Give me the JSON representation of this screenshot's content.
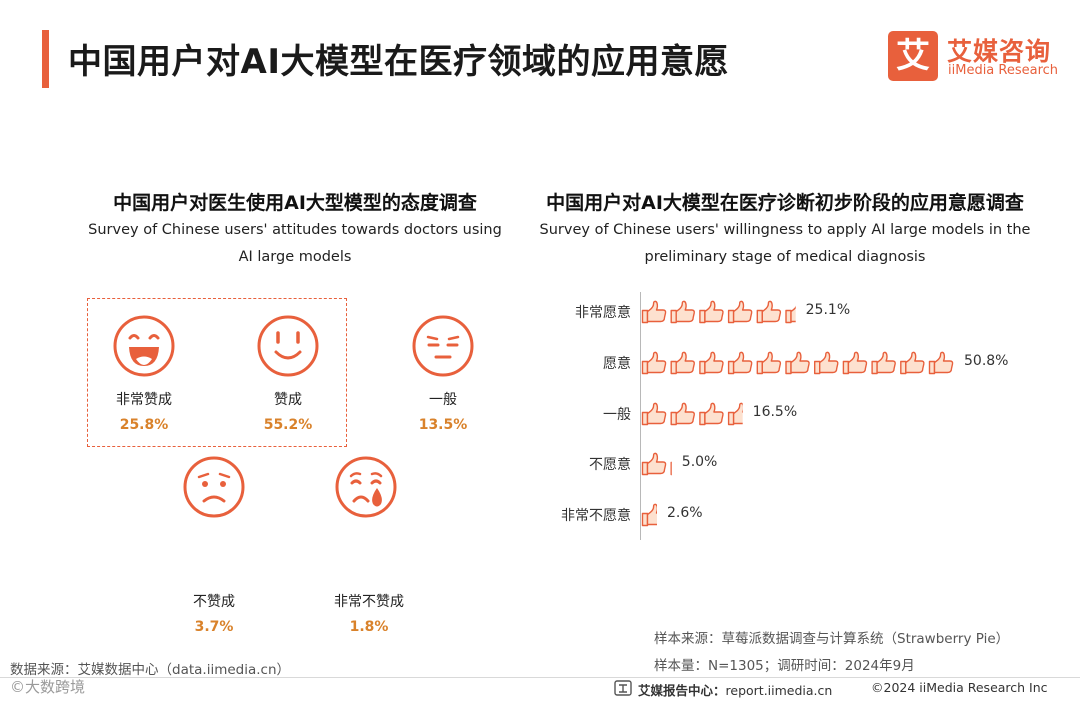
{
  "header": {
    "title": "中国用户对AI大模型在医疗领域的应用意愿",
    "logo_mark": "艾",
    "logo_cn": "艾媒咨询",
    "logo_en": "iiMedia Research"
  },
  "colors": {
    "accent": "#e8603c",
    "value": "#d9822b",
    "axis": "#b8b8b8"
  },
  "left_section": {
    "title_cn": "中国用户对医生使用AI大型模型的态度调查",
    "subtitle_line1": "Survey of Chinese users' attitudes towards doctors using",
    "subtitle_line2": "AI large models"
  },
  "right_section": {
    "title_cn": "中国用户对AI大模型在医疗诊断初步阶段的应用意愿调查",
    "subtitle_line1": "Survey of Chinese users' willingness to apply AI large models in the",
    "subtitle_line2": "preliminary stage of medical diagnosis"
  },
  "chart_data": [
    {
      "type": "pie",
      "categories": [
        "非常赞成",
        "赞成",
        "一般",
        "不赞成",
        "非常不赞成"
      ],
      "values": [
        25.8,
        55.2,
        13.5,
        3.7,
        1.8
      ],
      "value_labels": [
        "25.8%",
        "55.2%",
        "13.5%",
        "3.7%",
        "1.8%"
      ],
      "icons": [
        "big-laugh-face-icon",
        "smile-face-icon",
        "neutral-face-icon",
        "frown-face-icon",
        "crying-face-icon"
      ],
      "title": "中国用户对医生使用AI大型模型的态度调查",
      "subtitle": "Survey of Chinese users' attitudes towards doctors using AI large models"
    },
    {
      "type": "bar",
      "orientation": "horizontal",
      "mark": "thumbs-up-icon",
      "categories": [
        "非常愿意",
        "愿意",
        "一般",
        "不愿意",
        "非常不愿意"
      ],
      "values": [
        25.1,
        50.8,
        16.5,
        5.0,
        2.6
      ],
      "value_labels": [
        "25.1%",
        "50.8%",
        "16.5%",
        "5.0%",
        "2.6%"
      ],
      "xlim": [
        0,
        50.8
      ],
      "grid": false,
      "title": "中国用户对AI大模型在医疗诊断初步阶段的应用意愿调查",
      "subtitle": "Survey of Chinese users' willingness to apply AI large models in the preliminary stage of medical diagnosis"
    }
  ],
  "sources": {
    "sample_source": "样本来源：草莓派数据调查与计算系统（Strawberry Pie）",
    "sample_size": "样本量：N=1305；调研时间：2024年9月",
    "data_source": "数据来源：艾媒数据中心（data.iimedia.cn）"
  },
  "watermark": "©大数跨境",
  "footer": {
    "site_label": "艾媒报告中心：",
    "site_url": "report.iimedia.cn",
    "copyright": "©2024  iiMedia Research  Inc"
  }
}
